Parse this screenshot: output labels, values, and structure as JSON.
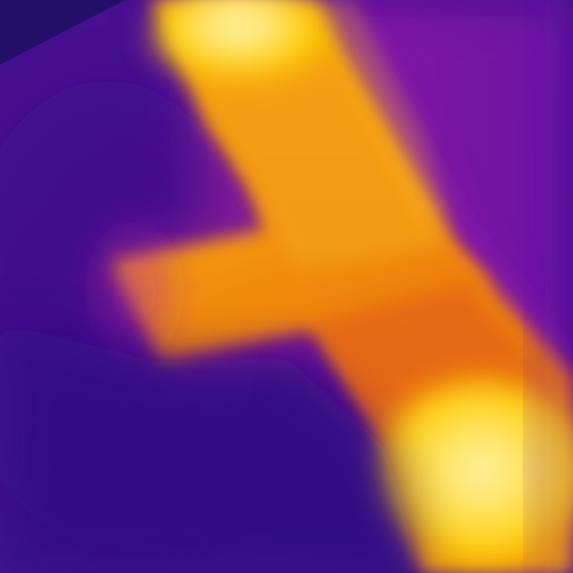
{
  "image": {
    "kind": "thermal-camera-image",
    "palette": {
      "coldest": "#2f0f83",
      "cool": "#5b10a7",
      "mid_cool": "#8b16a8",
      "warm_magenta": "#b0239e",
      "orange": "#f08a10",
      "warm_orange": "#f49d12",
      "yellow": "#ffd400",
      "hottest": "#fff6b5"
    },
    "visible_text": []
  }
}
